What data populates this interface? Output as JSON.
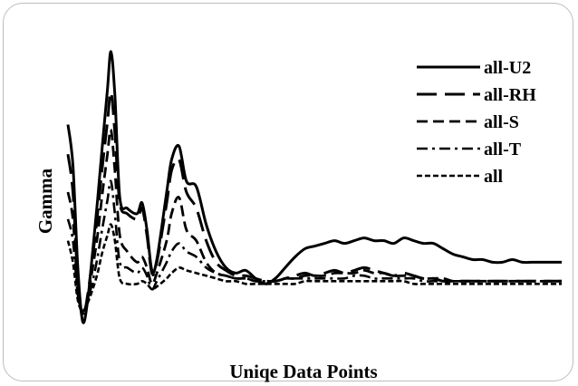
{
  "chart_data": {
    "type": "line",
    "title": "",
    "xlabel": "Uniqe Data Points",
    "ylabel": "Gamma",
    "xlim": [
      0,
      100
    ],
    "ylim": [
      0,
      100
    ],
    "grid": false,
    "legend_position": "top-right",
    "series": [
      {
        "name": "all-U2",
        "dash": "solid",
        "points": [
          [
            0,
            73
          ],
          [
            1,
            58
          ],
          [
            2,
            20
          ],
          [
            3,
            0
          ],
          [
            4,
            8
          ],
          [
            5,
            26
          ],
          [
            6,
            45
          ],
          [
            7,
            66
          ],
          [
            8,
            86
          ],
          [
            8.7,
            100
          ],
          [
            9.5,
            84
          ],
          [
            10.5,
            46
          ],
          [
            12,
            42
          ],
          [
            14,
            40
          ],
          [
            15,
            44
          ],
          [
            16,
            34
          ],
          [
            17,
            19
          ],
          [
            18,
            23
          ],
          [
            20,
            48
          ],
          [
            21,
            60
          ],
          [
            22.5,
            65
          ],
          [
            24,
            52
          ],
          [
            26,
            50
          ],
          [
            28,
            36
          ],
          [
            30,
            26
          ],
          [
            32,
            20
          ],
          [
            34,
            18
          ],
          [
            36,
            19
          ],
          [
            38,
            16
          ],
          [
            40,
            14
          ],
          [
            42,
            16
          ],
          [
            44,
            20
          ],
          [
            46,
            24
          ],
          [
            48,
            27
          ],
          [
            50,
            28
          ],
          [
            52,
            29
          ],
          [
            54,
            30
          ],
          [
            56,
            29
          ],
          [
            58,
            30
          ],
          [
            60,
            31
          ],
          [
            62,
            30
          ],
          [
            64,
            30
          ],
          [
            66,
            29
          ],
          [
            68,
            31
          ],
          [
            70,
            30
          ],
          [
            72,
            29
          ],
          [
            74,
            29
          ],
          [
            76,
            27
          ],
          [
            78,
            25
          ],
          [
            80,
            24
          ],
          [
            82,
            23
          ],
          [
            84,
            23
          ],
          [
            86,
            22
          ],
          [
            88,
            22
          ],
          [
            90,
            23
          ],
          [
            92,
            22
          ],
          [
            94,
            22
          ],
          [
            96,
            22
          ],
          [
            100,
            22
          ]
        ]
      },
      {
        "name": "all-RH",
        "dash": "long-dash",
        "points": [
          [
            0,
            62
          ],
          [
            1,
            48
          ],
          [
            2,
            15
          ],
          [
            3,
            2
          ],
          [
            4,
            10
          ],
          [
            5,
            24
          ],
          [
            6,
            40
          ],
          [
            7,
            58
          ],
          [
            8,
            74
          ],
          [
            8.7,
            85
          ],
          [
            9.5,
            70
          ],
          [
            10.5,
            44
          ],
          [
            12,
            40
          ],
          [
            14,
            38
          ],
          [
            15,
            42
          ],
          [
            16,
            32
          ],
          [
            17,
            18
          ],
          [
            18,
            22
          ],
          [
            20,
            44
          ],
          [
            21,
            56
          ],
          [
            22.5,
            60
          ],
          [
            24,
            48
          ],
          [
            26,
            42
          ],
          [
            28,
            30
          ],
          [
            30,
            22
          ],
          [
            32,
            19
          ],
          [
            34,
            17
          ],
          [
            36,
            17
          ],
          [
            38,
            16
          ],
          [
            40,
            15
          ],
          [
            42,
            15
          ],
          [
            44,
            16
          ],
          [
            46,
            17
          ],
          [
            48,
            18
          ],
          [
            50,
            17
          ],
          [
            52,
            18
          ],
          [
            54,
            19
          ],
          [
            56,
            18
          ],
          [
            58,
            19
          ],
          [
            60,
            20
          ],
          [
            62,
            19
          ],
          [
            64,
            18
          ],
          [
            66,
            17
          ],
          [
            68,
            18
          ],
          [
            70,
            17
          ],
          [
            72,
            16
          ],
          [
            74,
            16
          ],
          [
            76,
            15
          ],
          [
            78,
            15
          ],
          [
            80,
            15
          ],
          [
            82,
            15
          ],
          [
            84,
            15
          ],
          [
            86,
            15
          ],
          [
            88,
            15
          ],
          [
            90,
            15
          ],
          [
            92,
            15
          ],
          [
            94,
            15
          ],
          [
            96,
            15
          ],
          [
            100,
            15
          ]
        ]
      },
      {
        "name": "all-S",
        "dash": "dash",
        "points": [
          [
            0,
            48
          ],
          [
            1,
            38
          ],
          [
            2,
            12
          ],
          [
            3,
            3
          ],
          [
            4,
            9
          ],
          [
            5,
            20
          ],
          [
            6,
            32
          ],
          [
            7,
            48
          ],
          [
            8,
            62
          ],
          [
            8.7,
            71
          ],
          [
            9.5,
            56
          ],
          [
            10.5,
            32
          ],
          [
            12,
            26
          ],
          [
            14,
            22
          ],
          [
            15,
            24
          ],
          [
            16,
            20
          ],
          [
            17,
            14
          ],
          [
            18,
            18
          ],
          [
            20,
            30
          ],
          [
            21,
            40
          ],
          [
            22.5,
            46
          ],
          [
            24,
            34
          ],
          [
            26,
            30
          ],
          [
            28,
            22
          ],
          [
            30,
            18
          ],
          [
            32,
            17
          ],
          [
            34,
            16
          ],
          [
            36,
            16
          ],
          [
            38,
            15
          ],
          [
            40,
            15
          ],
          [
            42,
            15
          ],
          [
            44,
            16
          ],
          [
            46,
            16
          ],
          [
            48,
            17
          ],
          [
            50,
            17
          ],
          [
            52,
            17
          ],
          [
            54,
            18
          ],
          [
            56,
            18
          ],
          [
            58,
            18
          ],
          [
            60,
            19
          ],
          [
            62,
            18
          ],
          [
            64,
            18
          ],
          [
            66,
            17
          ],
          [
            68,
            17
          ],
          [
            70,
            17
          ],
          [
            72,
            16
          ],
          [
            74,
            16
          ],
          [
            76,
            16
          ],
          [
            78,
            15
          ],
          [
            80,
            15
          ],
          [
            82,
            15
          ],
          [
            84,
            15
          ],
          [
            86,
            15
          ],
          [
            88,
            15
          ],
          [
            90,
            15
          ],
          [
            92,
            15
          ],
          [
            94,
            15
          ],
          [
            96,
            15
          ],
          [
            100,
            15
          ]
        ]
      },
      {
        "name": "all-T",
        "dash": "dash-dot",
        "points": [
          [
            0,
            38
          ],
          [
            1,
            30
          ],
          [
            2,
            10
          ],
          [
            3,
            4
          ],
          [
            4,
            8
          ],
          [
            5,
            15
          ],
          [
            6,
            24
          ],
          [
            7,
            35
          ],
          [
            8,
            45
          ],
          [
            8.7,
            52
          ],
          [
            9.5,
            40
          ],
          [
            10.5,
            22
          ],
          [
            12,
            20
          ],
          [
            14,
            18
          ],
          [
            15,
            20
          ],
          [
            16,
            17
          ],
          [
            17,
            12
          ],
          [
            18,
            15
          ],
          [
            20,
            22
          ],
          [
            21,
            26
          ],
          [
            22.5,
            29
          ],
          [
            24,
            26
          ],
          [
            26,
            24
          ],
          [
            28,
            20
          ],
          [
            30,
            18
          ],
          [
            32,
            17
          ],
          [
            34,
            16
          ],
          [
            36,
            16
          ],
          [
            38,
            15
          ],
          [
            40,
            15
          ],
          [
            42,
            15
          ],
          [
            44,
            16
          ],
          [
            46,
            16
          ],
          [
            48,
            16
          ],
          [
            50,
            16
          ],
          [
            52,
            16
          ],
          [
            54,
            16
          ],
          [
            56,
            16
          ],
          [
            58,
            17
          ],
          [
            60,
            17
          ],
          [
            62,
            16
          ],
          [
            64,
            16
          ],
          [
            66,
            16
          ],
          [
            68,
            16
          ],
          [
            70,
            16
          ],
          [
            72,
            15
          ],
          [
            74,
            15
          ],
          [
            76,
            15
          ],
          [
            78,
            15
          ],
          [
            80,
            15
          ],
          [
            82,
            15
          ],
          [
            84,
            15
          ],
          [
            86,
            15
          ],
          [
            88,
            15
          ],
          [
            90,
            15
          ],
          [
            92,
            15
          ],
          [
            94,
            15
          ],
          [
            96,
            15
          ],
          [
            100,
            15
          ]
        ]
      },
      {
        "name": "all",
        "dash": "short-dash",
        "points": [
          [
            0,
            30
          ],
          [
            1,
            22
          ],
          [
            2,
            8
          ],
          [
            3,
            4
          ],
          [
            4,
            7
          ],
          [
            5,
            12
          ],
          [
            6,
            18
          ],
          [
            7,
            26
          ],
          [
            8,
            32
          ],
          [
            8.7,
            36
          ],
          [
            9.5,
            30
          ],
          [
            10.5,
            16
          ],
          [
            12,
            14
          ],
          [
            14,
            14
          ],
          [
            15,
            15
          ],
          [
            16,
            14
          ],
          [
            17,
            12
          ],
          [
            18,
            13
          ],
          [
            20,
            16
          ],
          [
            21,
            18
          ],
          [
            22.5,
            20
          ],
          [
            24,
            19
          ],
          [
            26,
            18
          ],
          [
            28,
            17
          ],
          [
            30,
            16
          ],
          [
            32,
            15
          ],
          [
            34,
            15
          ],
          [
            36,
            14
          ],
          [
            38,
            14
          ],
          [
            40,
            14
          ],
          [
            42,
            14
          ],
          [
            44,
            14
          ],
          [
            46,
            14
          ],
          [
            48,
            15
          ],
          [
            50,
            15
          ],
          [
            52,
            15
          ],
          [
            54,
            15
          ],
          [
            56,
            15
          ],
          [
            58,
            15
          ],
          [
            60,
            15
          ],
          [
            62,
            15
          ],
          [
            64,
            15
          ],
          [
            66,
            15
          ],
          [
            68,
            15
          ],
          [
            70,
            14
          ],
          [
            72,
            14
          ],
          [
            74,
            14
          ],
          [
            76,
            14
          ],
          [
            78,
            14
          ],
          [
            80,
            14
          ],
          [
            82,
            14
          ],
          [
            84,
            14
          ],
          [
            86,
            14
          ],
          [
            88,
            14
          ],
          [
            90,
            14
          ],
          [
            92,
            14
          ],
          [
            94,
            14
          ],
          [
            96,
            14
          ],
          [
            100,
            14
          ]
        ]
      }
    ]
  }
}
